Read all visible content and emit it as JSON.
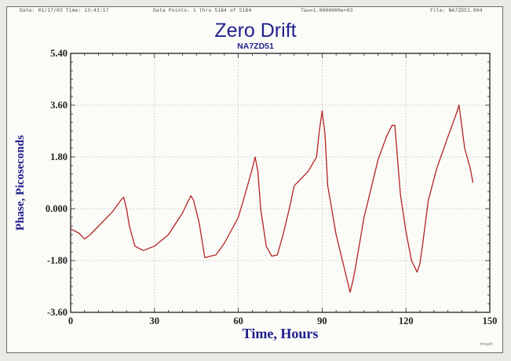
{
  "header": {
    "date": "Date: 01/17/03   Time: 13:43:17",
    "data_points": "Data Points: 1 thru 5184 of 5184",
    "tau": "Tau=1.0000000e+03",
    "file": "File: NA7ZD51.004"
  },
  "footer_mark": "tmuch",
  "colors": {
    "trace": "#b32323",
    "title": "#22228e",
    "grid": "#b4b4b4",
    "axis": "#222222"
  },
  "chart_data": {
    "type": "line",
    "title": "Zero Drift",
    "subtitle": "NA7ZD51",
    "xlabel": "Time, Hours",
    "ylabel": "Phase, Picoseconds",
    "xlim": [
      0,
      150
    ],
    "ylim": [
      -3.6,
      5.4
    ],
    "xticks": [
      "0",
      "30",
      "60",
      "90",
      "120",
      "150"
    ],
    "yticks": [
      "5.40",
      "3.60",
      "1.80",
      "0.000",
      "-1.80",
      "-3.60"
    ],
    "grid": true,
    "series": [
      {
        "x": [
          0,
          3,
          5,
          7,
          10,
          15,
          18,
          19,
          20,
          21,
          23,
          26,
          30,
          35,
          40,
          43,
          44,
          46,
          48,
          52,
          55,
          60,
          63,
          65,
          66,
          67,
          68,
          70,
          72,
          74,
          76,
          78,
          80,
          85,
          88,
          89,
          90,
          91,
          92,
          95,
          98,
          100,
          101,
          102,
          105,
          110,
          113,
          115,
          116,
          118,
          120,
          122,
          124,
          125,
          126,
          128,
          131,
          135,
          138,
          139,
          141,
          143,
          144
        ],
        "y": [
          -0.7,
          -0.85,
          -1.05,
          -0.9,
          -0.6,
          -0.1,
          0.3,
          0.4,
          0.0,
          -0.6,
          -1.3,
          -1.45,
          -1.3,
          -0.9,
          -0.15,
          0.45,
          0.3,
          -0.5,
          -1.7,
          -1.6,
          -1.2,
          -0.3,
          0.7,
          1.4,
          1.8,
          1.3,
          0.0,
          -1.3,
          -1.65,
          -1.6,
          -0.9,
          -0.1,
          0.8,
          1.3,
          1.8,
          2.7,
          3.4,
          2.6,
          0.8,
          -0.9,
          -2.1,
          -2.9,
          -2.5,
          -2.0,
          -0.3,
          1.7,
          2.5,
          2.9,
          2.9,
          0.5,
          -0.8,
          -1.8,
          -2.2,
          -1.9,
          -1.2,
          0.3,
          1.4,
          2.5,
          3.3,
          3.6,
          2.1,
          1.4,
          0.9
        ]
      }
    ]
  }
}
